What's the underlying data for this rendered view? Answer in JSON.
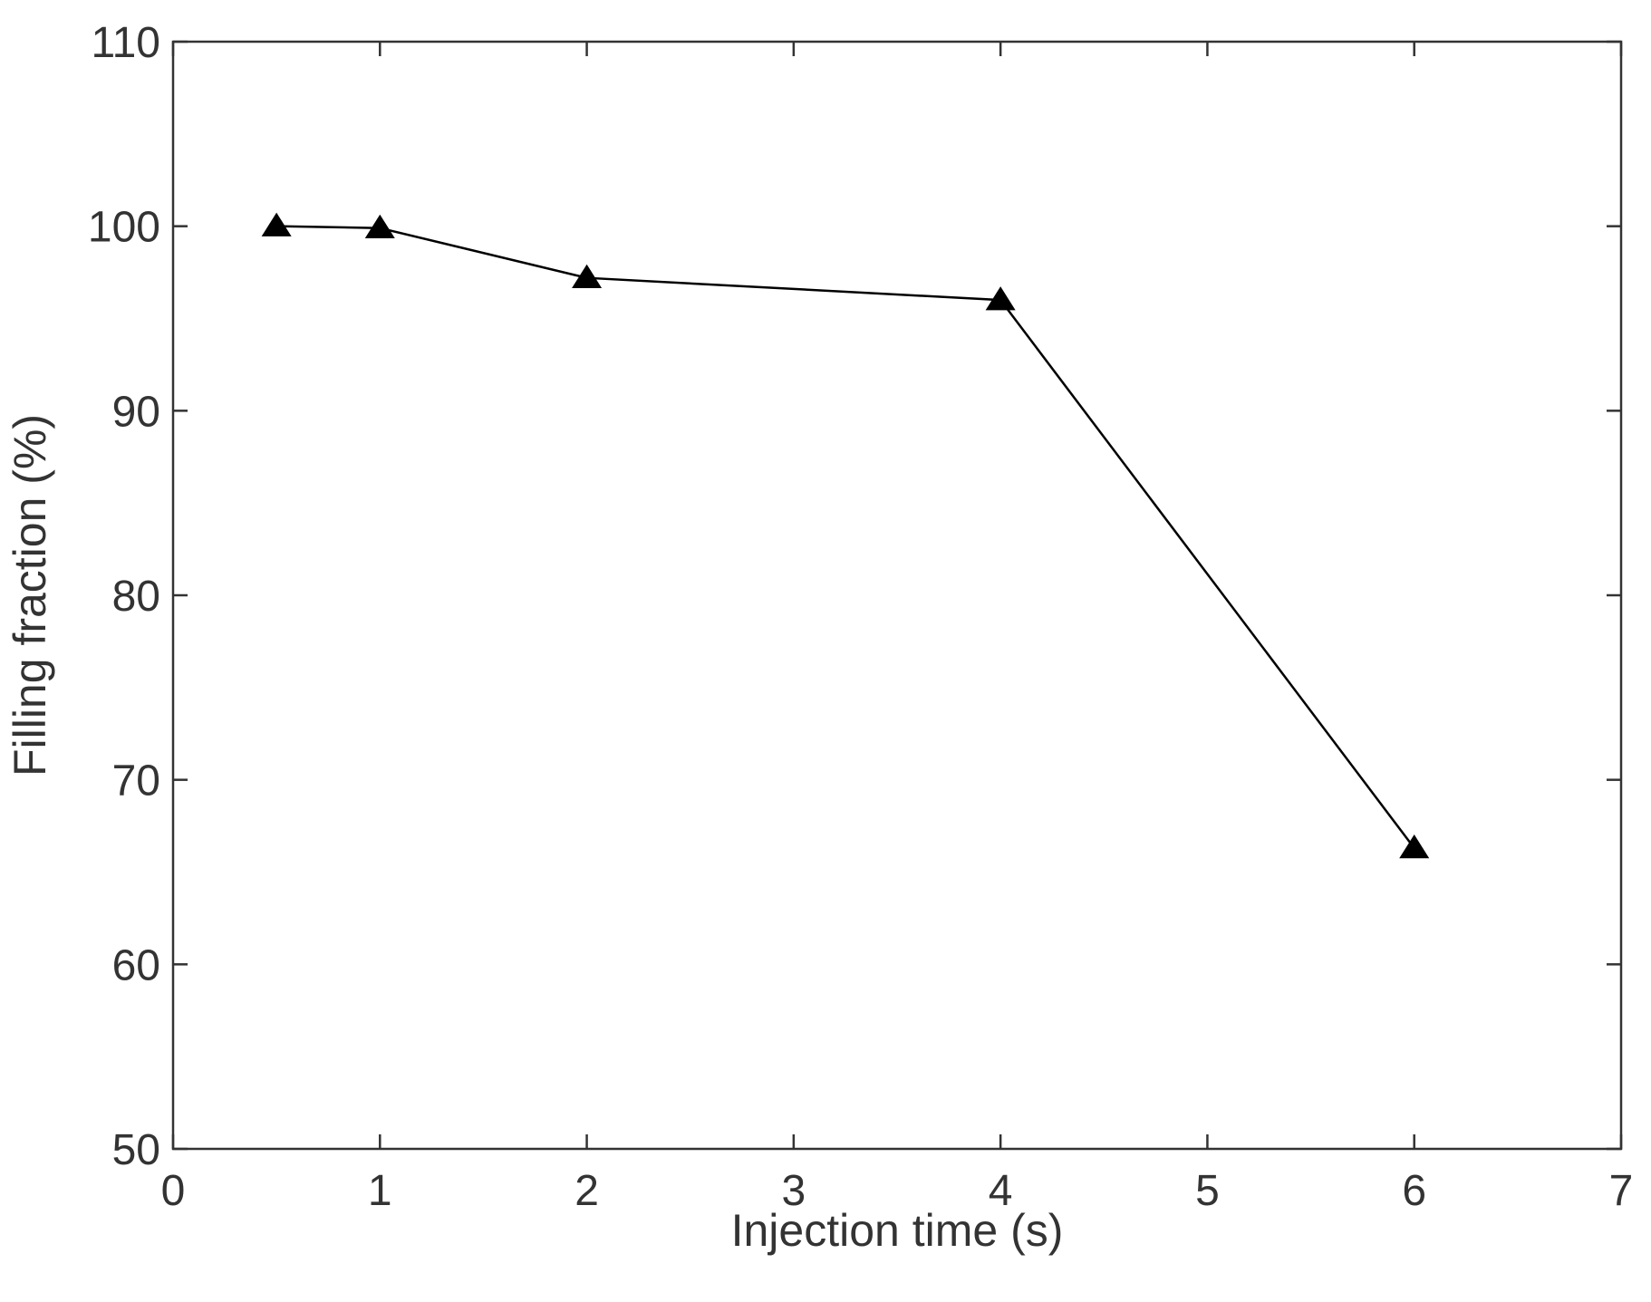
{
  "chart_data": {
    "type": "line",
    "title": "",
    "xlabel": "Injection time (s)",
    "ylabel": "Filling fraction (%)",
    "xlim": [
      0,
      7
    ],
    "ylim": [
      50,
      110
    ],
    "xticks": [
      0,
      1,
      2,
      3,
      4,
      5,
      6,
      7
    ],
    "yticks": [
      50,
      60,
      70,
      80,
      90,
      100,
      110
    ],
    "grid": false,
    "marker": "triangle",
    "line_color": "#000000",
    "marker_color": "#000000",
    "series": [
      {
        "x": [
          0.5,
          1,
          2,
          4,
          6
        ],
        "values": [
          100,
          99.9,
          97.2,
          96,
          66.3
        ]
      }
    ]
  }
}
